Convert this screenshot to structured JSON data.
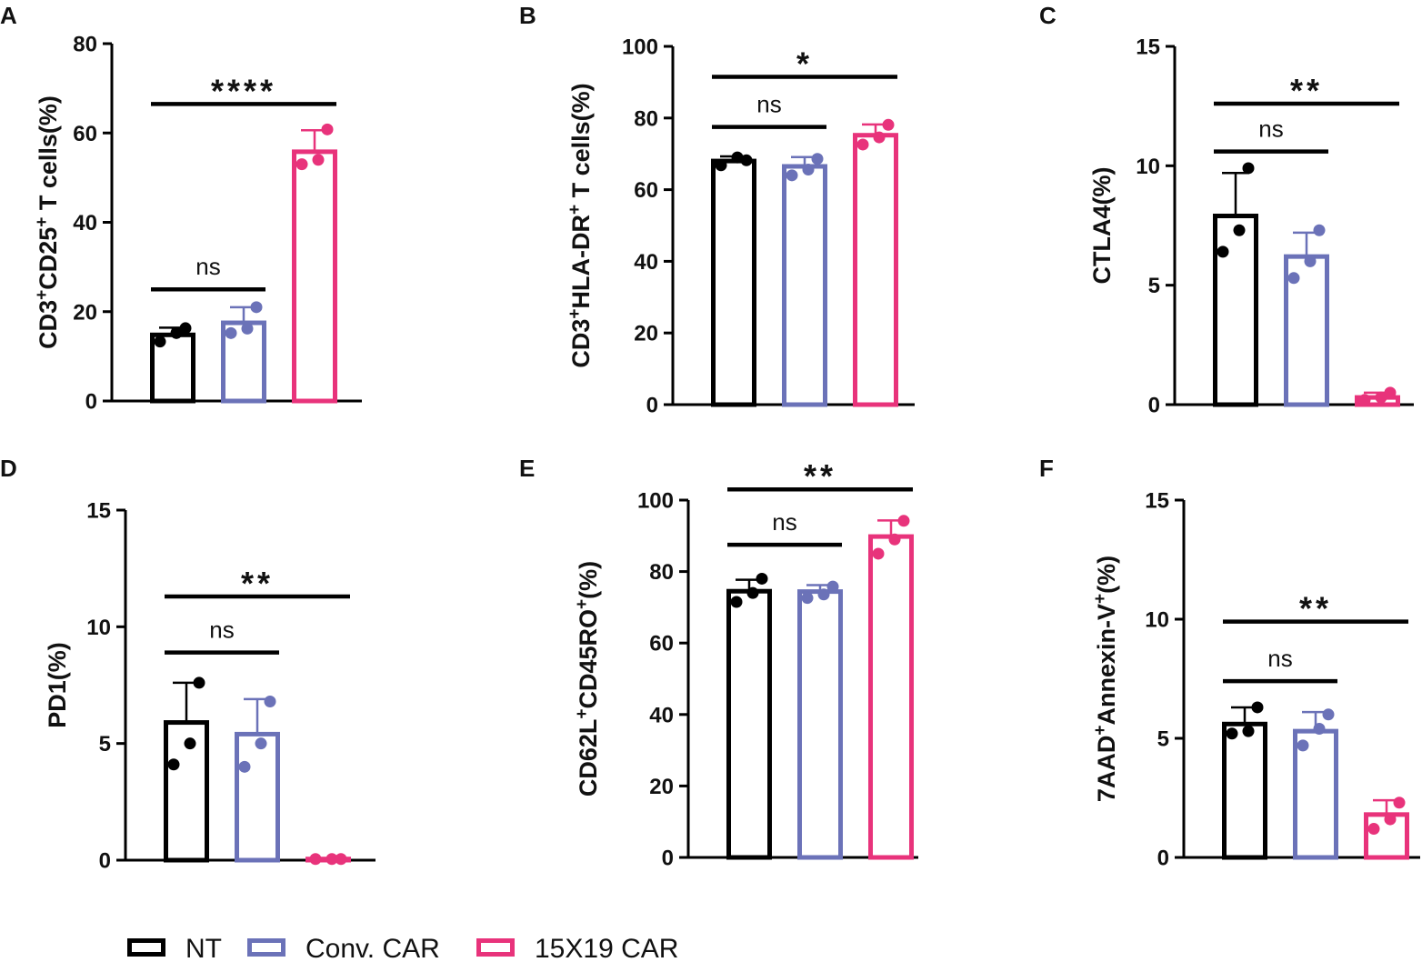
{
  "colors": {
    "NT": "#000000",
    "conv": "#6b72b8",
    "car": "#e8337b",
    "axis": "#000000"
  },
  "legend": [
    {
      "label": "NT",
      "color": "#000000"
    },
    {
      "label": "Conv. CAR",
      "color": "#6b72b8"
    },
    {
      "label": "15X19 CAR",
      "color": "#e8337b"
    }
  ],
  "chart_data": [
    {
      "panel": "A",
      "type": "bar",
      "ylabel": [
        {
          "t": "CD3"
        },
        {
          "t": "+",
          "sup": true
        },
        {
          "t": "CD25"
        },
        {
          "t": "+",
          "sup": true
        },
        {
          "t": " T cells(%)"
        }
      ],
      "ylim": [
        0,
        80
      ],
      "yticks": [
        "0",
        "20",
        "40",
        "60",
        "80"
      ],
      "groups": [
        {
          "name": "NT",
          "mean": 14.8,
          "sd": 1.6,
          "points": [
            13.3,
            15.2,
            16.3
          ]
        },
        {
          "name": "Conv. CAR",
          "mean": 17.5,
          "sd": 3.5,
          "points": [
            15.2,
            16.2,
            21.0
          ]
        },
        {
          "name": "15X19 CAR",
          "mean": 55.8,
          "sd": 4.8,
          "points": [
            53.0,
            54.0,
            60.8
          ]
        }
      ],
      "sig": [
        {
          "from": 0,
          "to": 1,
          "y": 25,
          "label": "ns",
          "stars": false
        },
        {
          "from": 0,
          "to": 2,
          "y": 66.5,
          "label": "****",
          "stars": true
        }
      ]
    },
    {
      "panel": "B",
      "type": "bar",
      "ylabel": [
        {
          "t": "CD3"
        },
        {
          "t": "+",
          "sup": true
        },
        {
          "t": "HLA-DR"
        },
        {
          "t": "+",
          "sup": true
        },
        {
          "t": " T cells(%)"
        }
      ],
      "ylim": [
        0,
        100
      ],
      "yticks": [
        "0",
        "20",
        "40",
        "60",
        "80",
        "100"
      ],
      "groups": [
        {
          "name": "NT",
          "mean": 68.0,
          "sd": 1.3,
          "points": [
            66.8,
            69.0,
            68.2
          ]
        },
        {
          "name": "Conv. CAR",
          "mean": 66.5,
          "sd": 2.6,
          "points": [
            64.0,
            65.6,
            68.6
          ]
        },
        {
          "name": "15X19 CAR",
          "mean": 75.2,
          "sd": 3.0,
          "points": [
            72.6,
            74.6,
            78.1
          ]
        }
      ],
      "sig": [
        {
          "from": 0,
          "to": 1,
          "y": 77.5,
          "label": "ns",
          "stars": false
        },
        {
          "from": 0,
          "to": 2,
          "y": 91.5,
          "label": "*",
          "stars": true
        }
      ]
    },
    {
      "panel": "C",
      "type": "bar",
      "ylabel": [
        {
          "t": "CTLA4(%)"
        }
      ],
      "ylim": [
        0,
        15
      ],
      "yticks": [
        "0",
        "5",
        "10",
        "15"
      ],
      "groups": [
        {
          "name": "NT",
          "mean": 7.9,
          "sd": 1.8,
          "points": [
            6.4,
            7.3,
            9.9
          ]
        },
        {
          "name": "Conv. CAR",
          "mean": 6.2,
          "sd": 1.0,
          "points": [
            5.3,
            6.0,
            7.3
          ]
        },
        {
          "name": "15X19 CAR",
          "mean": 0.3,
          "sd": 0.2,
          "points": [
            0.2,
            0.3,
            0.5
          ]
        }
      ],
      "sig": [
        {
          "from": 0,
          "to": 1,
          "y": 10.6,
          "label": "ns",
          "stars": false
        },
        {
          "from": 0,
          "to": 2,
          "y": 12.6,
          "label": "**",
          "stars": true
        }
      ]
    },
    {
      "panel": "D",
      "type": "bar",
      "ylabel": [
        {
          "t": "PD1(%)"
        }
      ],
      "ylim": [
        0,
        15
      ],
      "yticks": [
        "0",
        "5",
        "10",
        "15"
      ],
      "groups": [
        {
          "name": "NT",
          "mean": 5.9,
          "sd": 1.7,
          "points": [
            4.1,
            5.0,
            7.6
          ]
        },
        {
          "name": "Conv. CAR",
          "mean": 5.4,
          "sd": 1.5,
          "points": [
            4.0,
            5.0,
            6.8
          ]
        },
        {
          "name": "15X19 CAR",
          "mean": 0.05,
          "sd": 0.0,
          "points": [
            0.05,
            0.05,
            0.05
          ]
        }
      ],
      "sig": [
        {
          "from": 0,
          "to": 1,
          "y": 8.9,
          "label": "ns",
          "stars": false
        },
        {
          "from": 0,
          "to": 2,
          "y": 11.3,
          "label": "**",
          "stars": true
        }
      ]
    },
    {
      "panel": "E",
      "type": "bar",
      "ylabel": [
        {
          "t": "CD62L"
        },
        {
          "t": "+",
          "sup": true
        },
        {
          "t": "CD45RO"
        },
        {
          "t": "+",
          "sup": true
        },
        {
          "t": "(%)"
        }
      ],
      "ylim": [
        0,
        100
      ],
      "yticks": [
        "0",
        "20",
        "40",
        "60",
        "80",
        "100"
      ],
      "groups": [
        {
          "name": "NT",
          "mean": 74.5,
          "sd": 3.2,
          "points": [
            71.5,
            74.0,
            78.0
          ]
        },
        {
          "name": "Conv. CAR",
          "mean": 74.4,
          "sd": 1.8,
          "points": [
            72.6,
            73.6,
            75.8
          ]
        },
        {
          "name": "15X19 CAR",
          "mean": 89.8,
          "sd": 4.5,
          "points": [
            85.0,
            89.0,
            94.2
          ]
        }
      ],
      "sig": [
        {
          "from": 0,
          "to": 1,
          "y": 87.5,
          "label": "ns",
          "stars": false
        },
        {
          "from": 0,
          "to": 2,
          "y": 103.0,
          "label": "**",
          "stars": true
        }
      ]
    },
    {
      "panel": "F",
      "type": "bar",
      "ylabel": [
        {
          "t": "7AAD"
        },
        {
          "t": "+",
          "sup": true
        },
        {
          "t": "Annexin-V"
        },
        {
          "t": "+",
          "sup": true
        },
        {
          "t": "(%)"
        }
      ],
      "ylim": [
        0,
        15
      ],
      "yticks": [
        "0",
        "5",
        "10",
        "15"
      ],
      "groups": [
        {
          "name": "NT",
          "mean": 5.6,
          "sd": 0.7,
          "points": [
            5.2,
            5.3,
            6.3
          ]
        },
        {
          "name": "Conv. CAR",
          "mean": 5.3,
          "sd": 0.8,
          "points": [
            4.7,
            5.4,
            6.0
          ]
        },
        {
          "name": "15X19 CAR",
          "mean": 1.8,
          "sd": 0.6,
          "points": [
            1.2,
            1.6,
            2.3
          ]
        }
      ],
      "sig": [
        {
          "from": 0,
          "to": 1,
          "y": 7.4,
          "label": "ns",
          "stars": false
        },
        {
          "from": 0,
          "to": 2,
          "y": 9.9,
          "label": "**",
          "stars": true
        }
      ]
    }
  ]
}
